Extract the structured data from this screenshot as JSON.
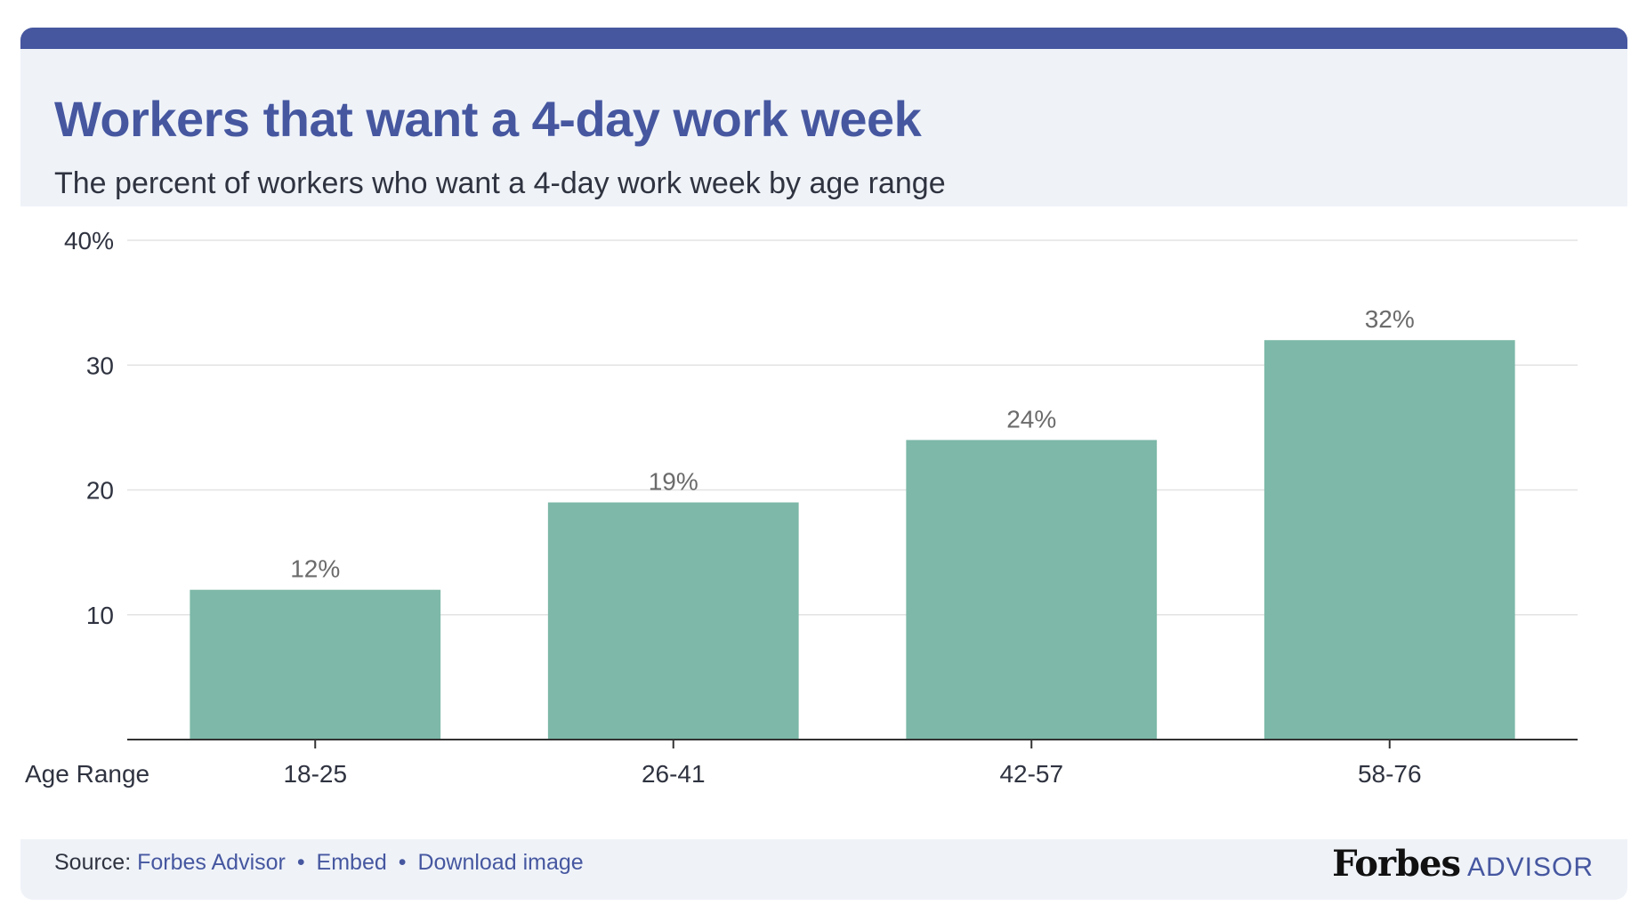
{
  "header": {
    "title": "Workers that want a 4-day work week",
    "subtitle": "The percent of workers who want a 4-day work week by age range"
  },
  "chart_data": {
    "type": "bar",
    "categories": [
      "18-25",
      "26-41",
      "42-57",
      "58-76"
    ],
    "values": [
      12,
      19,
      24,
      32
    ],
    "value_labels": [
      "12%",
      "19%",
      "24%",
      "32%"
    ],
    "xlabel": "Age Range",
    "ylabel": "",
    "ylim": [
      0,
      40
    ],
    "yticks": [
      10,
      20,
      30,
      40
    ],
    "ytick_labels": [
      "10",
      "20",
      "30",
      "40%"
    ],
    "grid": true,
    "bar_color": "#7db8a8",
    "label_color": "#6b6b6b"
  },
  "footer": {
    "source_label": "Source:",
    "source_link": "Forbes Advisor",
    "embed_link": "Embed",
    "download_link": "Download image",
    "separator": "•",
    "brand_name": "Forbes",
    "brand_suffix": "ADVISOR"
  },
  "colors": {
    "accent": "#4657a0",
    "header_bg": "#eff3f8",
    "bar": "#7db8a8"
  }
}
